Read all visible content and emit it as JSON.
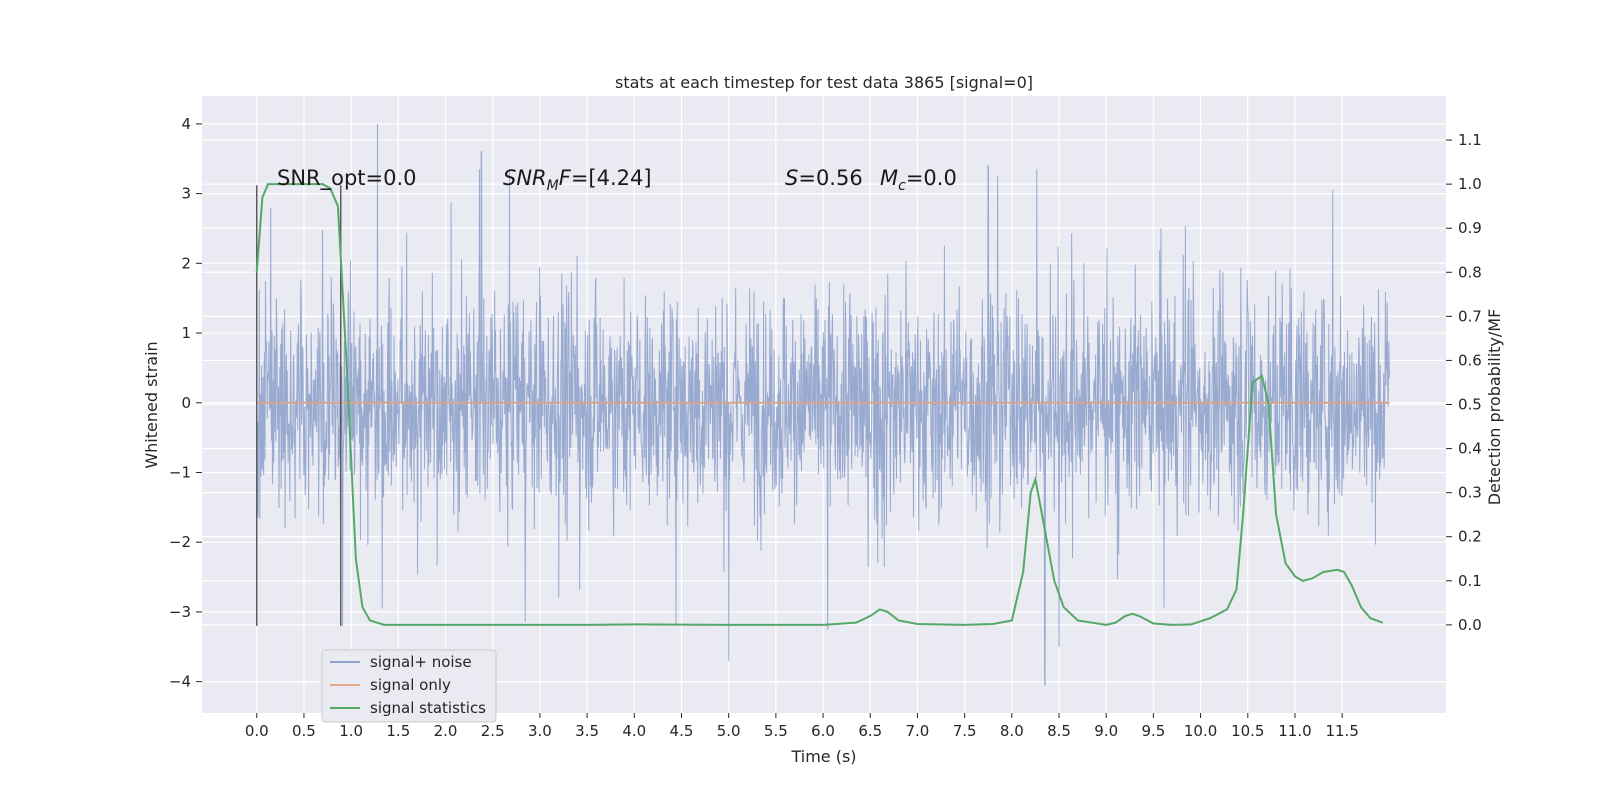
{
  "chart_data": {
    "type": "line",
    "title": "stats at each timestep for test data 3865 [signal=0]",
    "xlabel": "Time (s)",
    "ylabel": "Whitened strain",
    "y2label": "Detection probability/MF",
    "xlim": [
      -0.58,
      12.6
    ],
    "ylim": [
      -4.45,
      4.4
    ],
    "y2lim": [
      -0.2,
      1.2
    ],
    "x_ticks": [
      0.0,
      0.5,
      1.0,
      1.5,
      2.0,
      2.5,
      3.0,
      3.5,
      4.0,
      4.5,
      5.0,
      5.5,
      6.0,
      6.5,
      7.0,
      7.5,
      8.0,
      8.5,
      9.0,
      9.5,
      10.0,
      10.5,
      11.0,
      11.5
    ],
    "x_tick_labels": [
      "0.0",
      "0.5",
      "1.0",
      "1.5",
      "2.0",
      "2.5",
      "3.0",
      "3.5",
      "4.0",
      "4.5",
      "5.0",
      "5.5",
      "6.0",
      "6.5",
      "7.0",
      "7.5",
      "8.0",
      "8.5",
      "9.0",
      "9.5",
      "10.0",
      "10.5",
      "11.0",
      "11.5"
    ],
    "y_ticks": [
      -4,
      -3,
      -2,
      -1,
      0,
      1,
      2,
      3,
      4
    ],
    "y_tick_labels": [
      "−4",
      "−3",
      "−2",
      "−1",
      "0",
      "1",
      "2",
      "3",
      "4"
    ],
    "y2_ticks": [
      0.0,
      0.1,
      0.2,
      0.3,
      0.4,
      0.5,
      0.6,
      0.7,
      0.8,
      0.9,
      1.0,
      1.1
    ],
    "y2_tick_labels": [
      "0.0",
      "0.1",
      "0.2",
      "0.3",
      "0.4",
      "0.5",
      "0.6",
      "0.7",
      "0.8",
      "0.9",
      "1.0",
      "1.1"
    ],
    "grid": true,
    "legend_position": "lower-left",
    "colors": {
      "noise": "#8fa3cc",
      "signal_only": "#dd8452",
      "statistics": "#55a868",
      "vlines": "#555555",
      "background": "#eaeaf2"
    },
    "series": [
      {
        "name": "signal+ noise",
        "description_range": [
          -3.7,
          4.0
        ],
        "x_range": [
          0.0,
          12.0
        ],
        "sample_rate_hz": 2048,
        "notable_extrema": [
          {
            "x": 1.28,
            "y": 4.0
          },
          {
            "x": 2.38,
            "y": 3.6
          },
          {
            "x": 5.0,
            "y": -3.7
          },
          {
            "x": 6.05,
            "y": -3.25
          },
          {
            "x": 8.35,
            "y": -4.05
          },
          {
            "x": 8.5,
            "y": -3.5
          },
          {
            "x": 7.75,
            "y": 3.4
          },
          {
            "x": 11.4,
            "y": 3.05
          }
        ]
      },
      {
        "name": "signal only",
        "x": [
          0.0,
          12.0
        ],
        "y": [
          0.0,
          0.0
        ]
      },
      {
        "name": "signal statistics",
        "axis": "right",
        "x": [
          0.0,
          0.06,
          0.12,
          0.2,
          0.3,
          0.5,
          0.7,
          0.78,
          0.86,
          0.95,
          1.05,
          1.12,
          1.2,
          1.35,
          1.6,
          2.5,
          3.5,
          4.0,
          5.0,
          6.0,
          6.35,
          6.5,
          6.6,
          6.68,
          6.8,
          7.0,
          7.5,
          7.8,
          8.0,
          8.12,
          8.2,
          8.25,
          8.32,
          8.45,
          8.55,
          8.7,
          9.0,
          9.1,
          9.2,
          9.28,
          9.35,
          9.5,
          9.7,
          9.9,
          10.1,
          10.28,
          10.38,
          10.45,
          10.55,
          10.65,
          10.72,
          10.8,
          10.9,
          11.0,
          11.08,
          11.18,
          11.3,
          11.45,
          11.52,
          11.6,
          11.7,
          11.8,
          11.93
        ],
        "y": [
          0.8,
          0.97,
          1.0,
          1.0,
          1.0,
          1.0,
          1.0,
          0.99,
          0.95,
          0.6,
          0.15,
          0.04,
          0.01,
          0.0,
          0.0,
          0.0,
          0.0,
          0.001,
          0.0,
          0.0,
          0.005,
          0.02,
          0.035,
          0.03,
          0.01,
          0.002,
          0.0,
          0.002,
          0.01,
          0.12,
          0.3,
          0.33,
          0.25,
          0.1,
          0.04,
          0.01,
          0.0,
          0.005,
          0.02,
          0.025,
          0.02,
          0.003,
          0.0,
          0.001,
          0.015,
          0.035,
          0.08,
          0.25,
          0.55,
          0.565,
          0.5,
          0.25,
          0.14,
          0.11,
          0.1,
          0.105,
          0.12,
          0.125,
          0.12,
          0.09,
          0.04,
          0.015,
          0.005
        ]
      }
    ],
    "vlines": [
      0.0,
      0.89
    ],
    "annotations": {
      "snr_opt": "SNR_opt=0.0",
      "snr_mf_base": "SNR",
      "snr_mf_sub": "M",
      "snr_mf_rest": "F=[4.24]",
      "s_label": "S",
      "s_value": "=0.56",
      "mc_label": "M",
      "mc_sub": "c",
      "mc_value": "=0.0"
    }
  }
}
